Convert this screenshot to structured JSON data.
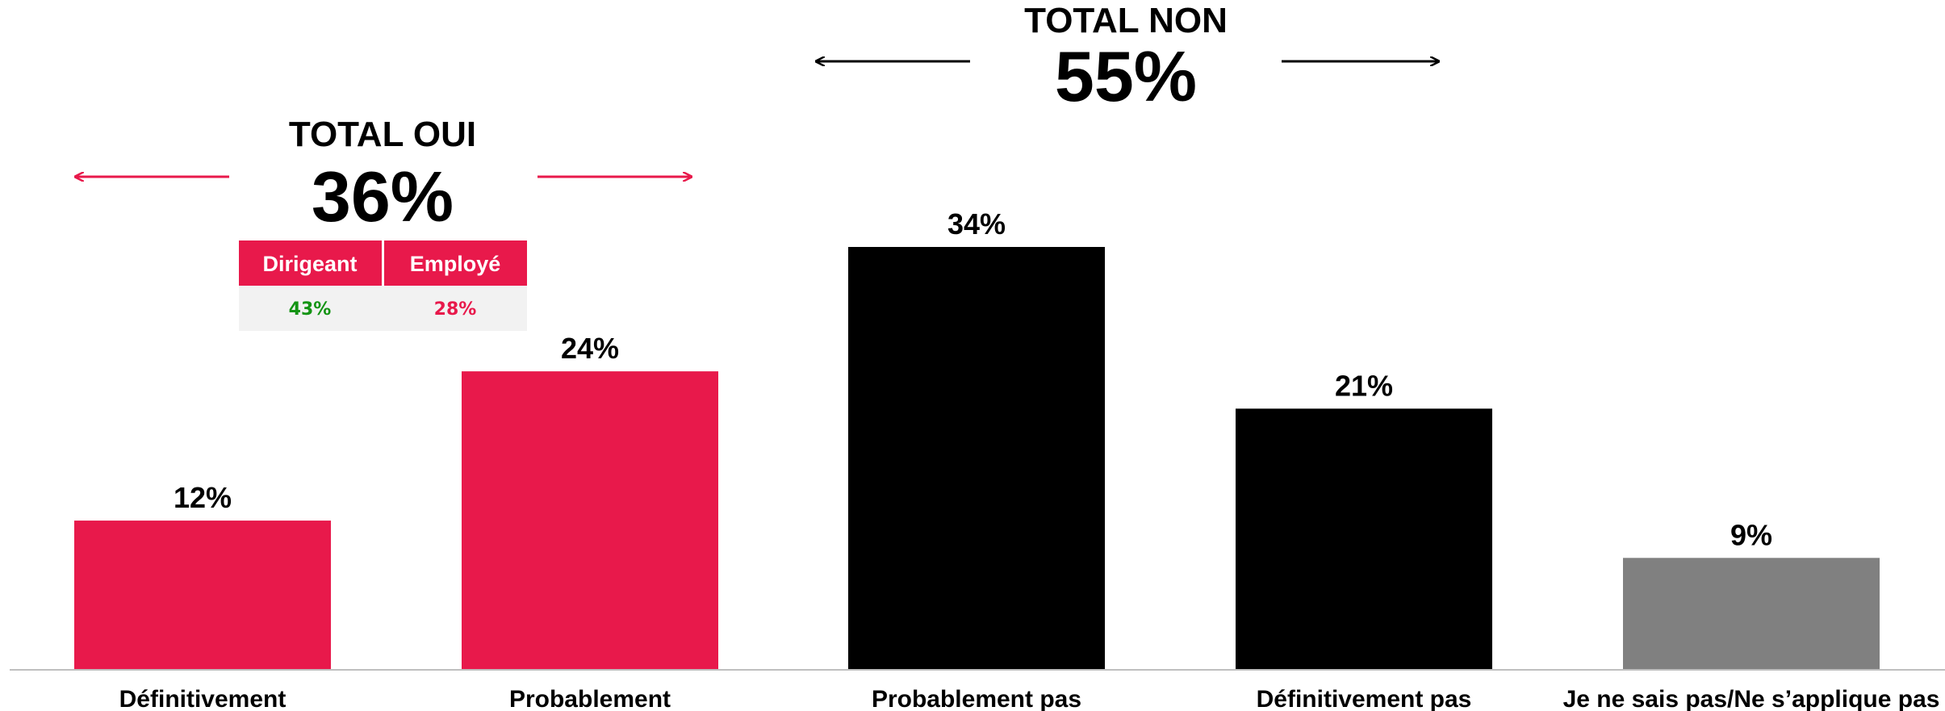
{
  "chart_data": {
    "type": "bar",
    "categories": [
      "Définitivement",
      "Probablement",
      "Probablement pas",
      "Définitivement pas",
      "Je ne sais pas/Ne s’applique pas"
    ],
    "values": [
      12,
      24,
      34,
      21,
      9
    ],
    "value_labels": [
      "12%",
      "24%",
      "34%",
      "21%",
      "9%"
    ],
    "bar_colors": [
      "#e8194b",
      "#e8194b",
      "#000000",
      "#000000",
      "#808080"
    ],
    "ylim": [
      0,
      34
    ],
    "grid": false,
    "title": "",
    "xlabel": "",
    "ylabel": "",
    "annotations": {
      "total_oui": {
        "title": "TOTAL OUI",
        "value": "36%",
        "arrow_color": "#e8194b",
        "breakdown": {
          "headers": [
            "Dirigeant",
            "Employé"
          ],
          "values": [
            "43%",
            "28%"
          ],
          "header_color": "#e8194b",
          "background_color": "#f2f2f2",
          "value_colors": [
            "#149414",
            "#e8194b"
          ]
        }
      },
      "total_non": {
        "title": "TOTAL NON",
        "value": "55%",
        "arrow_color": "#000000"
      }
    }
  }
}
